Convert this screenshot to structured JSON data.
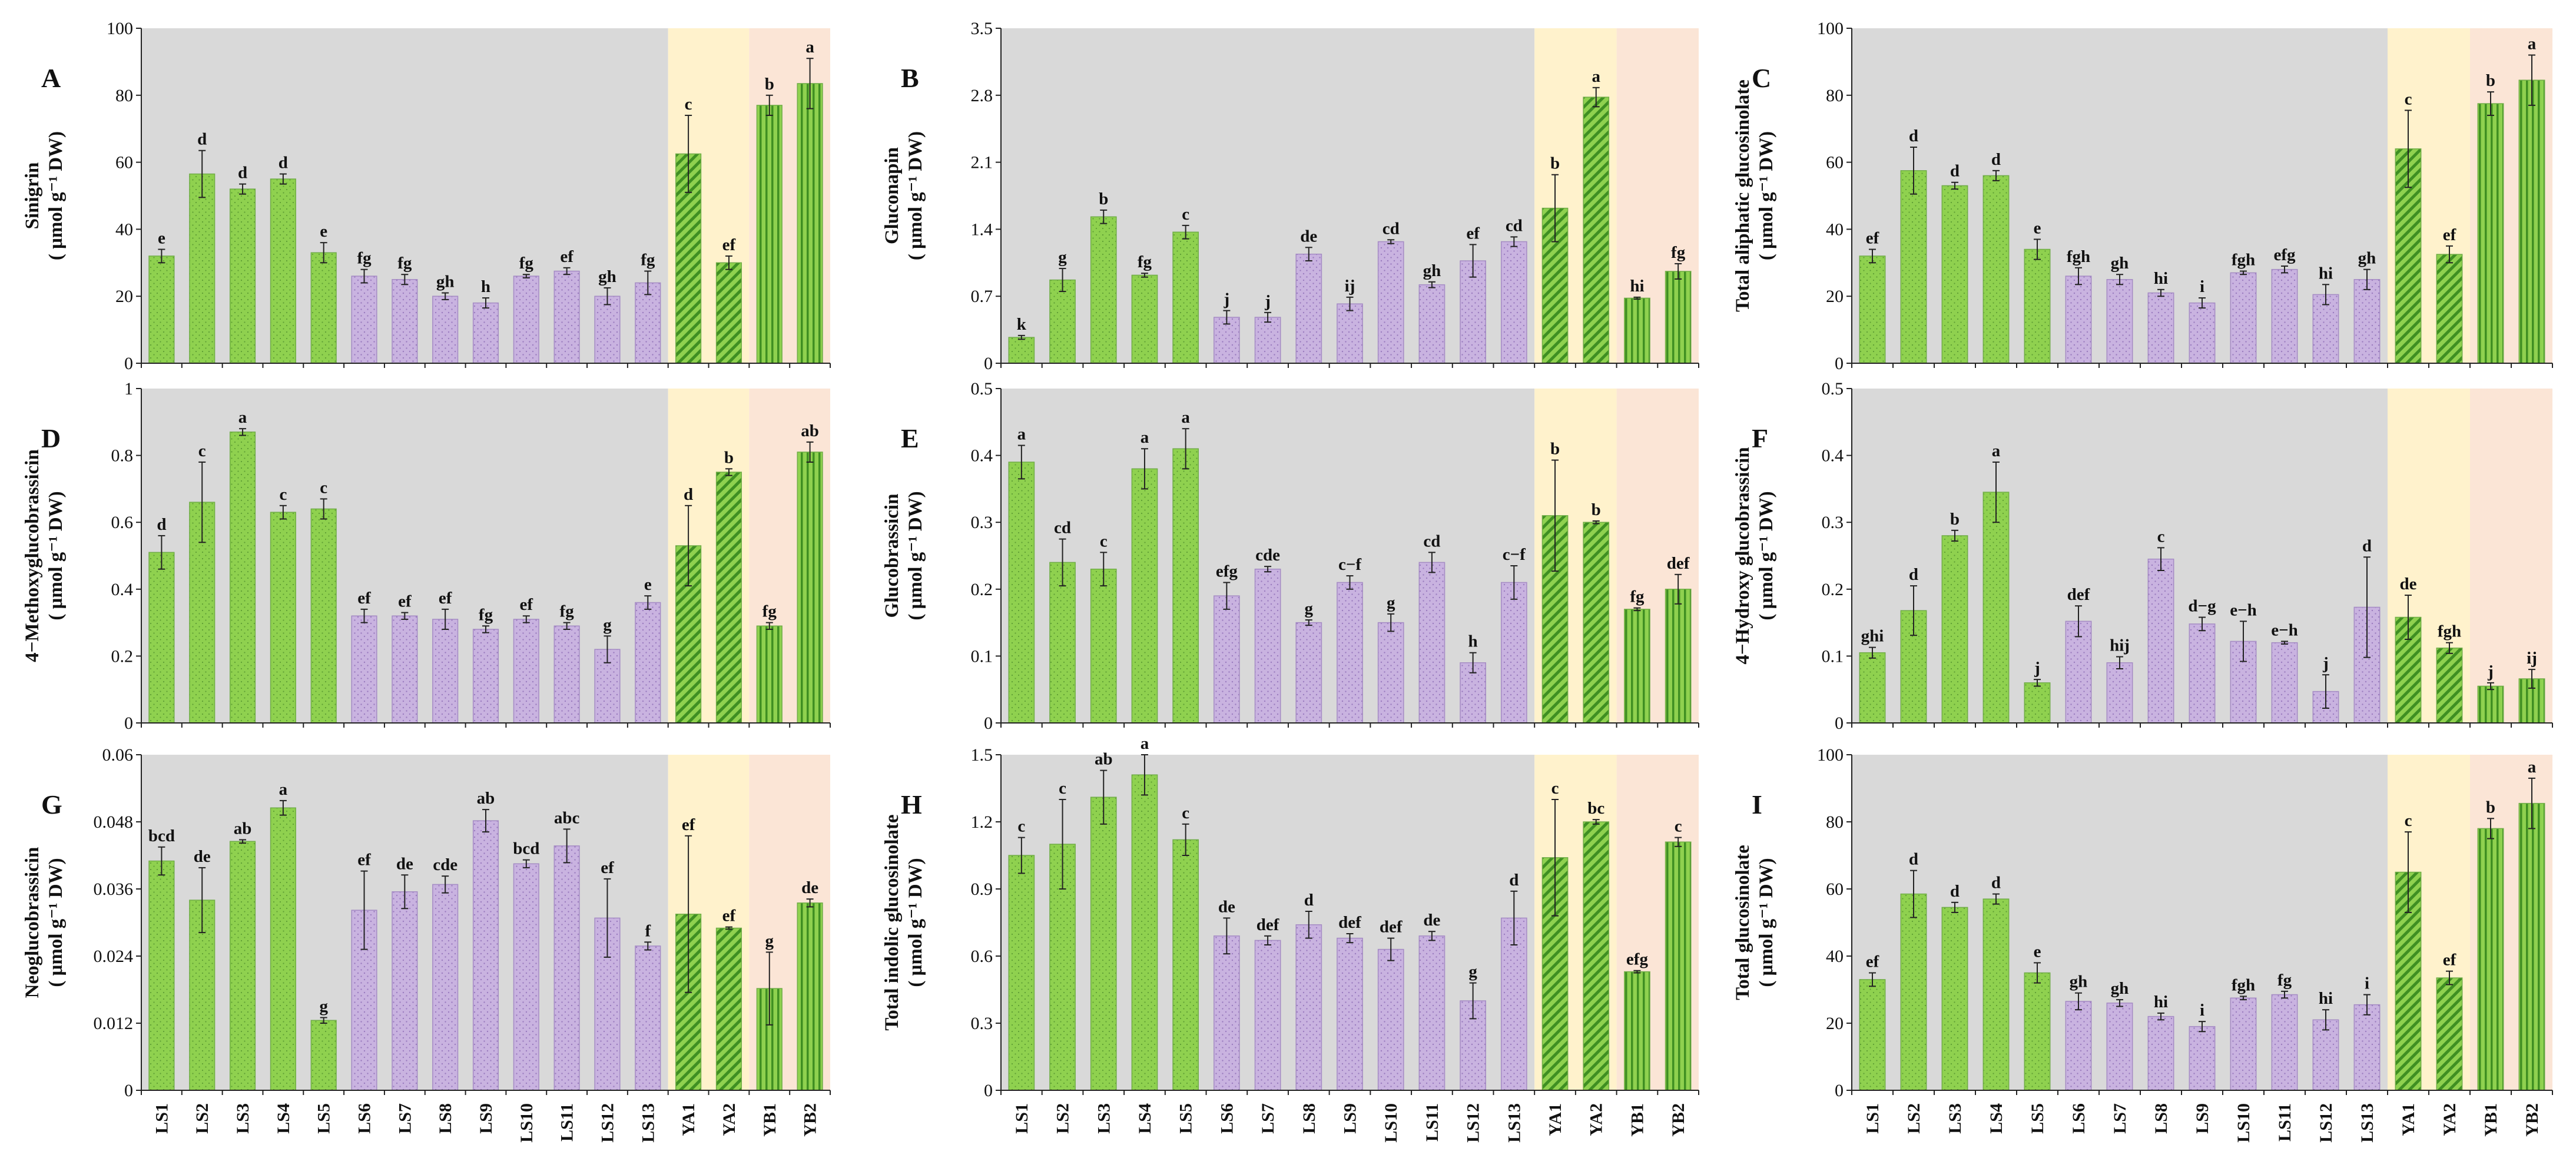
{
  "categories": [
    "LS1",
    "LS2",
    "LS3",
    "LS4",
    "LS5",
    "LS6",
    "LS7",
    "LS8",
    "LS9",
    "LS10",
    "LS11",
    "LS12",
    "LS13",
    "YA1",
    "YA2",
    "YB1",
    "YB2"
  ],
  "colors": {
    "background_LS": "#d9d9d9",
    "background_YA": "#fff2cc",
    "background_YB": "#fbe5d6",
    "green": "#8fd14f",
    "green_stroke": "#70ad47",
    "purple": "#c9b3e0",
    "purple_stroke": "#a58bc4",
    "hatch_green": "#3f8f22",
    "dot_purple": "#9a7bbf"
  },
  "bar_styles": [
    "green-dots",
    "green-dots",
    "green-dots",
    "green-dots",
    "green-dots",
    "purple-dots",
    "purple-dots",
    "purple-dots",
    "purple-dots",
    "purple-dots",
    "purple-dots",
    "purple-dots",
    "purple-dots",
    "green-hatch",
    "green-hatch",
    "green-vstripe",
    "green-vstripe"
  ],
  "chart_data": [
    {
      "type": "bar",
      "panel": "A",
      "ylabel_lines": [
        "Sinigrin",
        "( μmol g⁻¹ DW)"
      ],
      "ylim": [
        0,
        100
      ],
      "yticks": [
        0,
        20,
        40,
        60,
        80,
        100
      ],
      "ytick_labels": [
        "0",
        "20",
        "40",
        "60",
        "80",
        "100"
      ],
      "values": [
        32,
        56.5,
        52,
        55,
        33,
        26,
        25,
        20,
        18,
        26,
        27.5,
        20,
        24,
        62.5,
        30,
        77,
        83.5
      ],
      "errors": [
        2,
        7,
        1.5,
        1.5,
        3,
        2,
        1.5,
        1,
        1.5,
        0.5,
        1,
        2.5,
        3.5,
        11.5,
        2,
        3,
        7.5
      ],
      "letters": [
        "e",
        "d",
        "d",
        "d",
        "e",
        "fg",
        "fg",
        "gh",
        "h",
        "fg",
        "ef",
        "gh",
        "fg",
        "c",
        "ef",
        "b",
        "a"
      ]
    },
    {
      "type": "bar",
      "panel": "B",
      "ylabel_lines": [
        "Gluconapin",
        "( μmol g⁻¹ DW)"
      ],
      "ylim": [
        0,
        3.5
      ],
      "yticks": [
        0,
        0.7,
        1.4,
        2.1,
        2.8,
        3.5
      ],
      "ytick_labels": [
        "0",
        "0.7",
        "1.4",
        "2.1",
        "2.8",
        "3.5"
      ],
      "values": [
        0.27,
        0.87,
        1.53,
        0.92,
        1.37,
        0.48,
        0.48,
        1.14,
        0.62,
        1.27,
        0.82,
        1.07,
        1.27,
        1.62,
        2.78,
        0.68,
        0.96
      ],
      "errors": [
        0.02,
        0.12,
        0.07,
        0.02,
        0.07,
        0.07,
        0.05,
        0.07,
        0.07,
        0.02,
        0.03,
        0.17,
        0.05,
        0.35,
        0.1,
        0.01,
        0.08
      ],
      "letters": [
        "k",
        "g",
        "b",
        "fg",
        "c",
        "j",
        "j",
        "de",
        "ij",
        "cd",
        "gh",
        "ef",
        "cd",
        "b",
        "a",
        "hi",
        "fg"
      ]
    },
    {
      "type": "bar",
      "panel": "C",
      "ylabel_lines": [
        "Total aliphatic glucosinolate",
        "( μmol g⁻¹ DW)"
      ],
      "ylim": [
        0,
        100
      ],
      "yticks": [
        0,
        20,
        40,
        60,
        80,
        100
      ],
      "ytick_labels": [
        "0",
        "20",
        "40",
        "60",
        "80",
        "100"
      ],
      "values": [
        32,
        57.5,
        53,
        56,
        34,
        26,
        25,
        21,
        18,
        27,
        28,
        20.5,
        25,
        64,
        32.5,
        77.5,
        84.5
      ],
      "errors": [
        2,
        7,
        1,
        1.5,
        3,
        2.5,
        1.5,
        1,
        1.5,
        0.5,
        1,
        3,
        3,
        11.5,
        2.5,
        3.5,
        7.5
      ],
      "letters": [
        "ef",
        "d",
        "d",
        "d",
        "e",
        "fgh",
        "gh",
        "hi",
        "i",
        "fgh",
        "efg",
        "hi",
        "gh",
        "c",
        "ef",
        "b",
        "a"
      ]
    },
    {
      "type": "bar",
      "panel": "D",
      "ylabel_lines": [
        "4−Methoxyglucobrassicin",
        "( μmol g⁻¹ DW)"
      ],
      "ylim": [
        0,
        1
      ],
      "yticks": [
        0,
        0.2,
        0.4,
        0.6,
        0.8,
        1
      ],
      "ytick_labels": [
        "0",
        "0.2",
        "0.4",
        "0.6",
        "0.8",
        "1"
      ],
      "values": [
        0.51,
        0.66,
        0.87,
        0.63,
        0.64,
        0.32,
        0.32,
        0.31,
        0.28,
        0.31,
        0.29,
        0.22,
        0.36,
        0.53,
        0.75,
        0.29,
        0.81
      ],
      "errors": [
        0.05,
        0.12,
        0.01,
        0.02,
        0.03,
        0.02,
        0.01,
        0.03,
        0.01,
        0.01,
        0.01,
        0.04,
        0.02,
        0.12,
        0.01,
        0.01,
        0.03
      ],
      "letters": [
        "d",
        "c",
        "a",
        "c",
        "c",
        "ef",
        "ef",
        "ef",
        "fg",
        "ef",
        "fg",
        "g",
        "e",
        "d",
        "b",
        "fg",
        "ab"
      ]
    },
    {
      "type": "bar",
      "panel": "E",
      "ylabel_lines": [
        "Glucobrassicin",
        "( μmol g⁻¹ DW)"
      ],
      "ylim": [
        0,
        0.5
      ],
      "yticks": [
        0,
        0.1,
        0.2,
        0.3,
        0.4,
        0.5
      ],
      "ytick_labels": [
        "0",
        "0.1",
        "0.2",
        "0.3",
        "0.4",
        "0.5"
      ],
      "values": [
        0.39,
        0.24,
        0.23,
        0.38,
        0.41,
        0.19,
        0.23,
        0.15,
        0.21,
        0.15,
        0.24,
        0.09,
        0.21,
        0.31,
        0.3,
        0.17,
        0.2
      ],
      "errors": [
        0.025,
        0.035,
        0.025,
        0.03,
        0.03,
        0.02,
        0.004,
        0.004,
        0.01,
        0.013,
        0.015,
        0.015,
        0.025,
        0.083,
        0.002,
        0.002,
        0.022
      ],
      "letters": [
        "a",
        "cd",
        "c",
        "a",
        "a",
        "efg",
        "cde",
        "g",
        "c−f",
        "g",
        "cd",
        "h",
        "c−f",
        "b",
        "b",
        "fg",
        "def"
      ]
    },
    {
      "type": "bar",
      "panel": "F",
      "ylabel_lines": [
        "4−Hydroxy glucobrassicin",
        "( μmol g⁻¹ DW)"
      ],
      "ylim": [
        0,
        0.5
      ],
      "yticks": [
        0,
        0.1,
        0.2,
        0.3,
        0.4,
        0.5
      ],
      "ytick_labels": [
        "0",
        "0.1",
        "0.2",
        "0.3",
        "0.4",
        "0.5"
      ],
      "values": [
        0.105,
        0.168,
        0.28,
        0.345,
        0.06,
        0.152,
        0.09,
        0.245,
        0.148,
        0.122,
        0.12,
        0.047,
        0.173,
        0.158,
        0.112,
        0.055,
        0.066
      ],
      "errors": [
        0.008,
        0.037,
        0.008,
        0.045,
        0.005,
        0.023,
        0.009,
        0.017,
        0.01,
        0.03,
        0.002,
        0.025,
        0.075,
        0.033,
        0.008,
        0.005,
        0.014
      ],
      "letters": [
        "ghi",
        "d",
        "b",
        "a",
        "j",
        "def",
        "hij",
        "c",
        "d−g",
        "e−h",
        "e−h",
        "j",
        "d",
        "de",
        "fgh",
        "j",
        "ij"
      ]
    },
    {
      "type": "bar",
      "panel": "G",
      "ylabel_lines": [
        "Neoglucobrassicin",
        "( μmol g⁻¹ DW)"
      ],
      "ylim": [
        0,
        0.06
      ],
      "yticks": [
        0,
        0.012,
        0.024,
        0.036,
        0.048,
        0.06
      ],
      "ytick_labels": [
        "0",
        "0.012",
        "0.024",
        "0.036",
        "0.048",
        "0.06"
      ],
      "values": [
        0.041,
        0.034,
        0.0445,
        0.0505,
        0.0125,
        0.0322,
        0.0355,
        0.0368,
        0.0482,
        0.0405,
        0.0437,
        0.0308,
        0.0258,
        0.0315,
        0.029,
        0.0182,
        0.0335
      ],
      "errors": [
        0.0025,
        0.0058,
        0.0003,
        0.0013,
        0.0005,
        0.007,
        0.003,
        0.0015,
        0.002,
        0.0007,
        0.003,
        0.007,
        0.0007,
        0.014,
        0.0002,
        0.0065,
        0.0007
      ],
      "letters": [
        "bcd",
        "de",
        "ab",
        "a",
        "g",
        "ef",
        "de",
        "cde",
        "ab",
        "bcd",
        "abc",
        "ef",
        "f",
        "ef",
        "ef",
        "g",
        "de"
      ]
    },
    {
      "type": "bar",
      "panel": "H",
      "ylabel_lines": [
        "Total indolic glucosinolate",
        "( μmol g⁻¹ DW)"
      ],
      "ylim": [
        0,
        1.5
      ],
      "yticks": [
        0,
        0.3,
        0.6,
        0.9,
        1.2,
        1.5
      ],
      "ytick_labels": [
        "0",
        "0.3",
        "0.6",
        "0.9",
        "1.2",
        "1.5"
      ],
      "values": [
        1.05,
        1.1,
        1.31,
        1.41,
        1.12,
        0.69,
        0.67,
        0.74,
        0.68,
        0.63,
        0.69,
        0.4,
        0.77,
        1.04,
        1.2,
        0.53,
        1.11
      ],
      "errors": [
        0.08,
        0.2,
        0.12,
        0.09,
        0.07,
        0.08,
        0.02,
        0.06,
        0.02,
        0.05,
        0.02,
        0.08,
        0.12,
        0.26,
        0.01,
        0.005,
        0.02
      ],
      "letters": [
        "c",
        "c",
        "ab",
        "a",
        "c",
        "de",
        "def",
        "d",
        "def",
        "def",
        "de",
        "g",
        "d",
        "c",
        "bc",
        "efg",
        "c"
      ]
    },
    {
      "type": "bar",
      "panel": "I",
      "ylabel_lines": [
        "Total glucosinolate",
        "( μmol g⁻¹ DW)"
      ],
      "ylim": [
        0,
        100
      ],
      "yticks": [
        0,
        20,
        40,
        60,
        80,
        100
      ],
      "ytick_labels": [
        "0",
        "20",
        "40",
        "60",
        "80",
        "100"
      ],
      "values": [
        33,
        58.5,
        54.5,
        57,
        35,
        26.5,
        26,
        22,
        19,
        27.5,
        28.5,
        21,
        25.5,
        65,
        33.5,
        78,
        85.5
      ],
      "errors": [
        2,
        7,
        1.5,
        1.5,
        3,
        2.5,
        1,
        1,
        1.5,
        0.5,
        1,
        3,
        3,
        12,
        2,
        3,
        7.5
      ],
      "letters": [
        "ef",
        "d",
        "d",
        "d",
        "e",
        "gh",
        "gh",
        "hi",
        "i",
        "fgh",
        "fg",
        "hi",
        "i",
        "c",
        "ef",
        "b",
        "a"
      ]
    }
  ]
}
